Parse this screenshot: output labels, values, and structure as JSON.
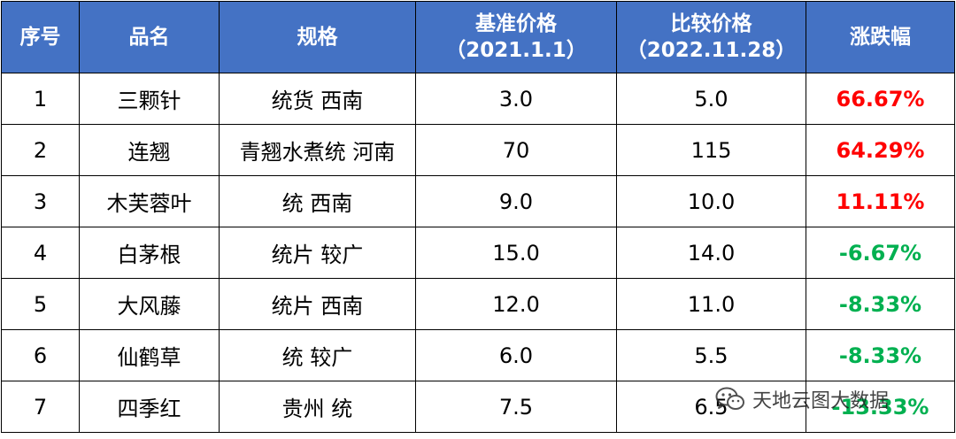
{
  "table": {
    "headers": [
      {
        "line1": "序号",
        "line2": ""
      },
      {
        "line1": "品名",
        "line2": ""
      },
      {
        "line1": "规格",
        "line2": ""
      },
      {
        "line1": "基准价格",
        "line2": "（2021.1.1）"
      },
      {
        "line1": "比较价格",
        "line2": "（2022.11.28）"
      },
      {
        "line1": "涨跌幅",
        "line2": ""
      }
    ],
    "rows": [
      {
        "no": "1",
        "name": "三颗针",
        "spec": "统货 西南",
        "base": "3.0",
        "compare": "5.0",
        "change": "66.67%",
        "direction": "up"
      },
      {
        "no": "2",
        "name": "连翘",
        "spec": "青翘水煮统 河南",
        "base": "70",
        "compare": "115",
        "change": "64.29%",
        "direction": "up"
      },
      {
        "no": "3",
        "name": "木芙蓉叶",
        "spec": "统 西南",
        "base": "9.0",
        "compare": "10.0",
        "change": "11.11%",
        "direction": "up"
      },
      {
        "no": "4",
        "name": "白茅根",
        "spec": "统片 较广",
        "base": "15.0",
        "compare": "14.0",
        "change": "-6.67%",
        "direction": "down"
      },
      {
        "no": "5",
        "name": "大风藤",
        "spec": "统片 西南",
        "base": "12.0",
        "compare": "11.0",
        "change": "-8.33%",
        "direction": "down"
      },
      {
        "no": "6",
        "name": "仙鹤草",
        "spec": "统 较广",
        "base": "6.0",
        "compare": "5.5",
        "change": "-8.33%",
        "direction": "down"
      },
      {
        "no": "7",
        "name": "四季红",
        "spec": "贵州 统",
        "base": "7.5",
        "compare": "6.5",
        "change": "-13.33%",
        "direction": "down"
      }
    ]
  },
  "colors": {
    "header_bg": "#4472c4",
    "header_text": "#ffffff",
    "up": "#ff0000",
    "down": "#00b050"
  },
  "watermark": {
    "text": "天地云图大数据",
    "icon": "wechat-icon"
  }
}
